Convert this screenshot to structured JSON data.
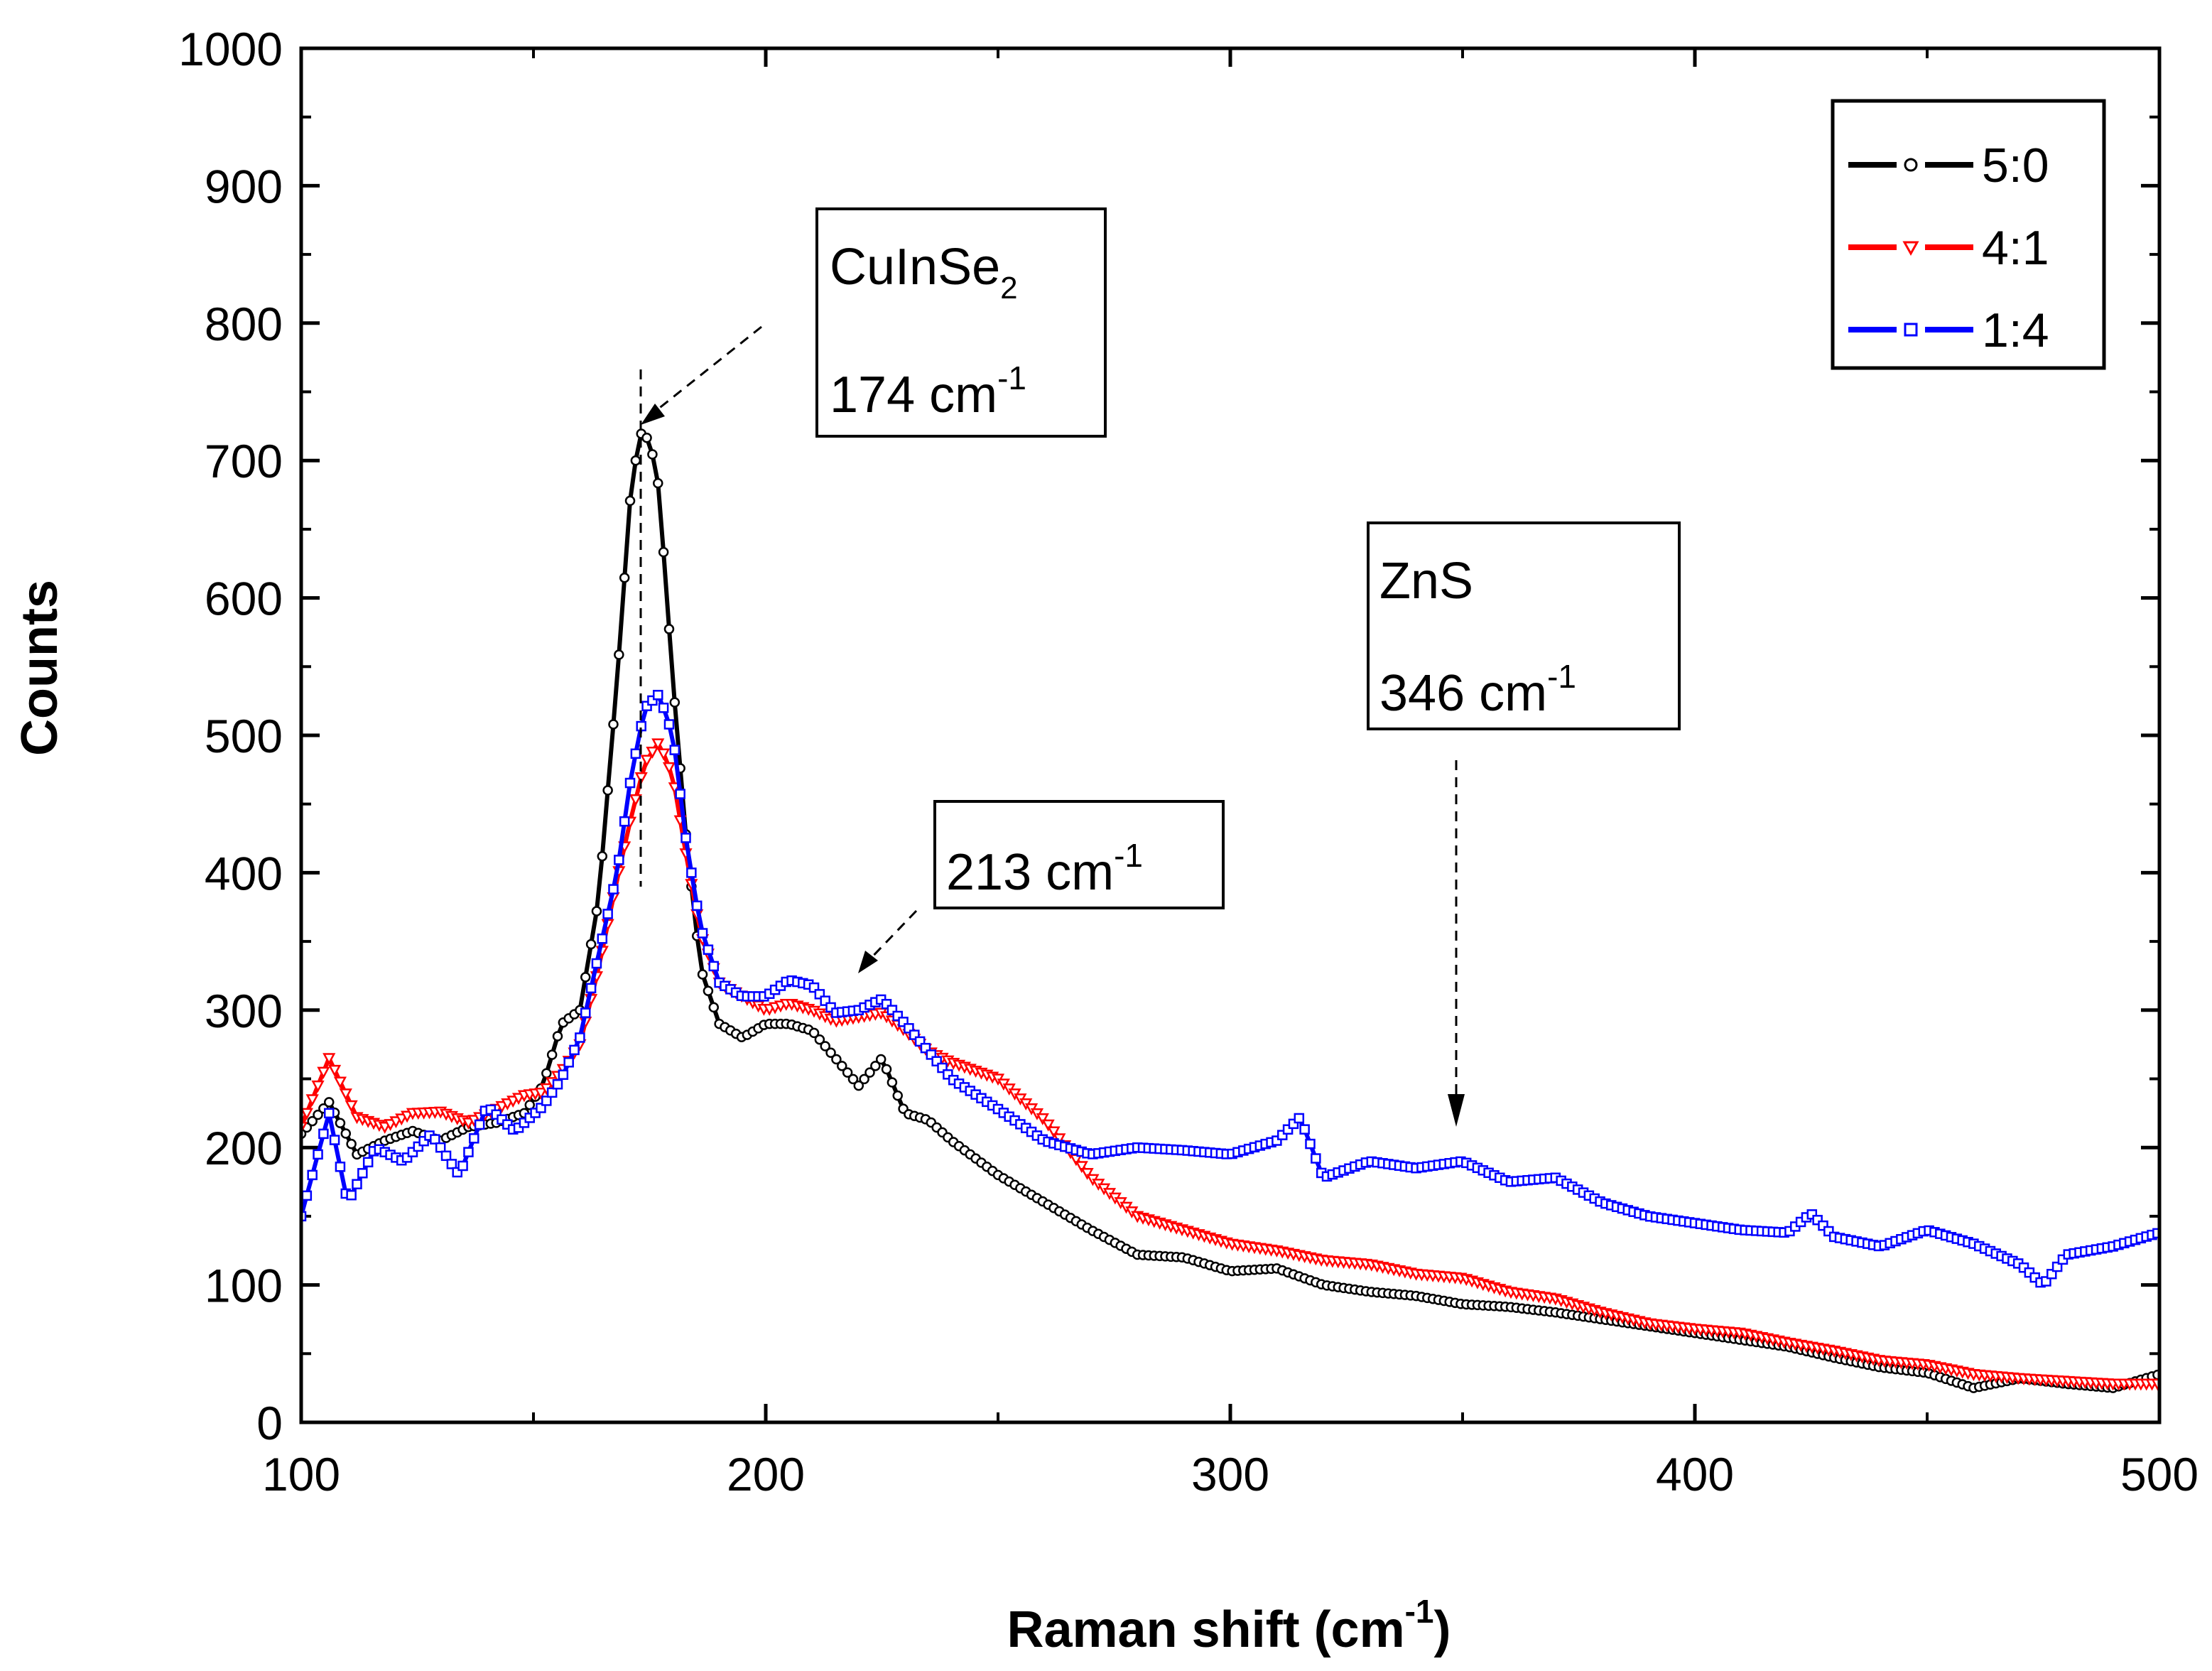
{
  "chart_data": {
    "type": "line",
    "title": "",
    "xlabel": "Raman shift (cm",
    "xlabel_sup": "-1",
    "xlabel_close": ")",
    "ylabel": "Counts",
    "xlim": [
      100,
      500
    ],
    "ylim": [
      0,
      1000
    ],
    "xticks": [
      100,
      200,
      300,
      400,
      500
    ],
    "xtick_labels": [
      "100",
      "200",
      "300",
      "400",
      "500"
    ],
    "yticks": [
      0,
      100,
      200,
      300,
      400,
      500,
      600,
      700,
      800,
      900,
      1000
    ],
    "ytick_labels": [
      "0",
      "100",
      "200",
      "300",
      "400",
      "500",
      "600",
      "700",
      "800",
      "900",
      "1000"
    ],
    "legend_position": "top-right",
    "series": [
      {
        "name": "5:0",
        "color": "#000000",
        "marker": "circle",
        "points": [
          [
            100,
            210
          ],
          [
            106,
            233
          ],
          [
            112,
            195
          ],
          [
            118,
            205
          ],
          [
            124,
            212
          ],
          [
            130,
            205
          ],
          [
            136,
            215
          ],
          [
            142,
            218
          ],
          [
            148,
            225
          ],
          [
            152,
            245
          ],
          [
            156,
            290
          ],
          [
            160,
            300
          ],
          [
            164,
            380
          ],
          [
            168,
            540
          ],
          [
            171,
            680
          ],
          [
            173,
            720
          ],
          [
            175,
            715
          ],
          [
            177,
            680
          ],
          [
            180,
            540
          ],
          [
            183,
            420
          ],
          [
            186,
            330
          ],
          [
            190,
            290
          ],
          [
            195,
            280
          ],
          [
            200,
            290
          ],
          [
            205,
            290
          ],
          [
            210,
            285
          ],
          [
            215,
            265
          ],
          [
            220,
            245
          ],
          [
            225,
            265
          ],
          [
            230,
            225
          ],
          [
            235,
            220
          ],
          [
            240,
            205
          ],
          [
            250,
            180
          ],
          [
            260,
            160
          ],
          [
            270,
            140
          ],
          [
            280,
            122
          ],
          [
            290,
            120
          ],
          [
            300,
            110
          ],
          [
            310,
            112
          ],
          [
            320,
            100
          ],
          [
            330,
            95
          ],
          [
            340,
            92
          ],
          [
            350,
            86
          ],
          [
            360,
            84
          ],
          [
            370,
            80
          ],
          [
            380,
            75
          ],
          [
            390,
            70
          ],
          [
            400,
            65
          ],
          [
            410,
            60
          ],
          [
            420,
            55
          ],
          [
            430,
            47
          ],
          [
            440,
            40
          ],
          [
            450,
            36
          ],
          [
            460,
            25
          ],
          [
            470,
            32
          ],
          [
            480,
            28
          ],
          [
            490,
            25
          ],
          [
            500,
            35
          ]
        ]
      },
      {
        "name": "4:1",
        "color": "#ff0000",
        "marker": "triangle-down",
        "points": [
          [
            100,
            215
          ],
          [
            106,
            265
          ],
          [
            112,
            222
          ],
          [
            118,
            215
          ],
          [
            124,
            225
          ],
          [
            130,
            226
          ],
          [
            136,
            218
          ],
          [
            142,
            228
          ],
          [
            148,
            238
          ],
          [
            152,
            240
          ],
          [
            156,
            255
          ],
          [
            160,
            275
          ],
          [
            164,
            330
          ],
          [
            168,
            395
          ],
          [
            171,
            440
          ],
          [
            174,
            480
          ],
          [
            177,
            495
          ],
          [
            180,
            470
          ],
          [
            183,
            410
          ],
          [
            186,
            355
          ],
          [
            190,
            320
          ],
          [
            195,
            310
          ],
          [
            200,
            300
          ],
          [
            205,
            305
          ],
          [
            210,
            300
          ],
          [
            215,
            292
          ],
          [
            220,
            295
          ],
          [
            225,
            298
          ],
          [
            230,
            285
          ],
          [
            235,
            270
          ],
          [
            240,
            262
          ],
          [
            250,
            250
          ],
          [
            260,
            220
          ],
          [
            270,
            178
          ],
          [
            280,
            150
          ],
          [
            290,
            140
          ],
          [
            300,
            130
          ],
          [
            310,
            125
          ],
          [
            320,
            118
          ],
          [
            330,
            115
          ],
          [
            340,
            108
          ],
          [
            350,
            105
          ],
          [
            360,
            95
          ],
          [
            370,
            90
          ],
          [
            380,
            80
          ],
          [
            390,
            72
          ],
          [
            400,
            68
          ],
          [
            410,
            65
          ],
          [
            420,
            58
          ],
          [
            430,
            52
          ],
          [
            440,
            45
          ],
          [
            450,
            42
          ],
          [
            460,
            35
          ],
          [
            470,
            32
          ],
          [
            480,
            30
          ],
          [
            490,
            28
          ],
          [
            500,
            28
          ]
        ]
      },
      {
        "name": "1:4",
        "color": "#0000ff",
        "marker": "square",
        "points": [
          [
            100,
            150
          ],
          [
            106,
            225
          ],
          [
            110,
            160
          ],
          [
            116,
            200
          ],
          [
            122,
            190
          ],
          [
            128,
            210
          ],
          [
            134,
            180
          ],
          [
            140,
            230
          ],
          [
            146,
            212
          ],
          [
            152,
            230
          ],
          [
            156,
            250
          ],
          [
            160,
            280
          ],
          [
            164,
            340
          ],
          [
            168,
            400
          ],
          [
            171,
            470
          ],
          [
            174,
            520
          ],
          [
            177,
            530
          ],
          [
            180,
            500
          ],
          [
            183,
            420
          ],
          [
            186,
            360
          ],
          [
            190,
            320
          ],
          [
            195,
            310
          ],
          [
            200,
            310
          ],
          [
            205,
            322
          ],
          [
            210,
            318
          ],
          [
            215,
            298
          ],
          [
            220,
            300
          ],
          [
            225,
            308
          ],
          [
            230,
            290
          ],
          [
            235,
            270
          ],
          [
            240,
            250
          ],
          [
            250,
            228
          ],
          [
            260,
            205
          ],
          [
            270,
            195
          ],
          [
            280,
            200
          ],
          [
            290,
            198
          ],
          [
            300,
            195
          ],
          [
            310,
            205
          ],
          [
            315,
            222
          ],
          [
            320,
            178
          ],
          [
            330,
            190
          ],
          [
            340,
            185
          ],
          [
            350,
            190
          ],
          [
            360,
            175
          ],
          [
            370,
            178
          ],
          [
            380,
            160
          ],
          [
            390,
            150
          ],
          [
            400,
            145
          ],
          [
            410,
            140
          ],
          [
            420,
            138
          ],
          [
            425,
            152
          ],
          [
            430,
            135
          ],
          [
            440,
            128
          ],
          [
            450,
            140
          ],
          [
            460,
            130
          ],
          [
            470,
            115
          ],
          [
            475,
            100
          ],
          [
            480,
            122
          ],
          [
            490,
            128
          ],
          [
            500,
            138
          ]
        ]
      }
    ],
    "annotations": [
      {
        "title": "CuInSe",
        "sub": "2",
        "value": "174 cm",
        "sup": "-1",
        "peak_x": 174
      },
      {
        "title": "",
        "value": "213 cm",
        "sup": "-1",
        "peak_x": 213
      },
      {
        "title": "ZnS",
        "value": "346 cm",
        "sup": "-1",
        "peak_x": 346
      }
    ]
  }
}
